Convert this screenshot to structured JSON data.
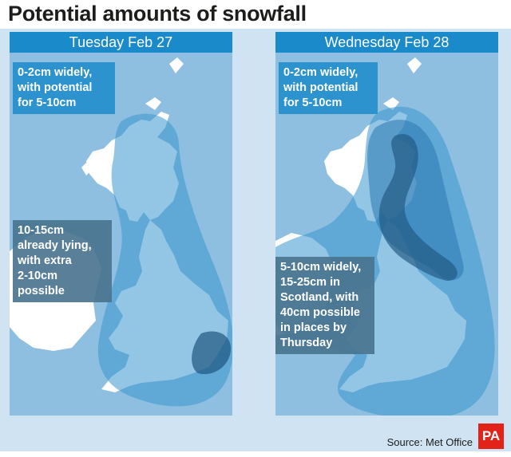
{
  "title": "Potential amounts of snowfall",
  "panels": [
    {
      "header": "Tuesday Feb 27",
      "callouts": [
        "0-2cm widely,\nwith potential\nfor 5-10cm",
        "10-15cm\nalready lying,\nwith extra\n2-10cm\npossible"
      ]
    },
    {
      "header": "Wednesday Feb 28",
      "callouts": [
        "0-2cm widely,\nwith potential\nfor 5-10cm",
        "5-10cm widely,\n15-25cm in\nScotland, with\n40cm possible\nin places by\nThursday"
      ]
    }
  ],
  "legend_colors": {
    "light": "#3a97d0",
    "medium": "#2a78b0",
    "dark": "#1f5680"
  },
  "source": "Source: Met Office",
  "logo": "PA"
}
